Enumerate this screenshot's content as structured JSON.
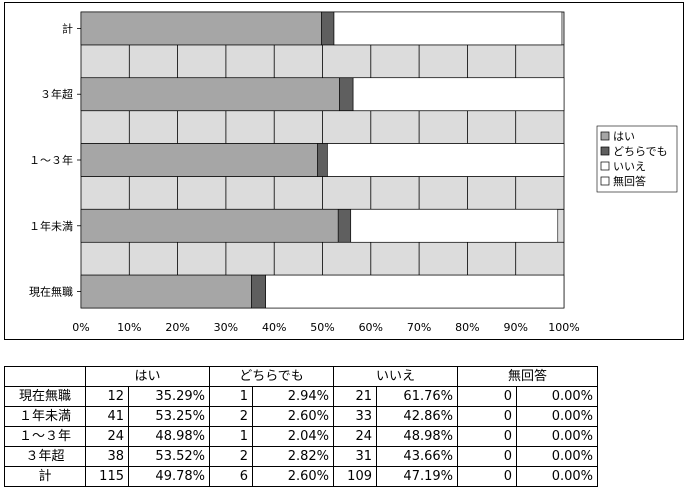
{
  "chart_data": {
    "type": "bar",
    "orientation": "horizontal",
    "stacked": "percent",
    "categories": [
      "計",
      "３年超",
      "１～３年",
      "１年未満",
      "現在無職"
    ],
    "series": [
      {
        "name": "はい",
        "values": [
          49.78,
          53.52,
          48.98,
          53.25,
          35.29
        ],
        "color": "#a6a6a6"
      },
      {
        "name": "どちらでも",
        "values": [
          2.6,
          2.82,
          2.04,
          2.6,
          2.94
        ],
        "color": "#5f5f5f"
      },
      {
        "name": "いいえ",
        "values": [
          47.19,
          43.66,
          48.98,
          42.86,
          61.76
        ],
        "color": "#ffffff"
      },
      {
        "name": "無回答",
        "values": [
          0.0,
          0.0,
          0.0,
          0.0,
          0.0
        ],
        "color": "#ffffff"
      }
    ],
    "x_ticks": [
      "0%",
      "10%",
      "20%",
      "30%",
      "40%",
      "50%",
      "60%",
      "70%",
      "80%",
      "90%",
      "100%"
    ],
    "xlim": [
      0,
      100
    ],
    "grid": true,
    "plot_background": "#dcdcdc",
    "legend_position": "right"
  },
  "table": {
    "headers": [
      "はい",
      "どちらでも",
      "いいえ",
      "無回答"
    ],
    "rows": [
      {
        "label": "現在無職",
        "cells": [
          "12",
          "35.29%",
          "1",
          "2.94%",
          "21",
          "61.76%",
          "0",
          "0.00%"
        ]
      },
      {
        "label": "１年未満",
        "cells": [
          "41",
          "53.25%",
          "2",
          "2.60%",
          "33",
          "42.86%",
          "0",
          "0.00%"
        ]
      },
      {
        "label": "１～３年",
        "cells": [
          "24",
          "48.98%",
          "1",
          "2.04%",
          "24",
          "48.98%",
          "0",
          "0.00%"
        ]
      },
      {
        "label": "３年超",
        "cells": [
          "38",
          "53.52%",
          "2",
          "2.82%",
          "31",
          "43.66%",
          "0",
          "0.00%"
        ]
      },
      {
        "label": "計",
        "cells": [
          "115",
          "49.78%",
          "6",
          "2.60%",
          "109",
          "47.19%",
          "0",
          "0.00%"
        ]
      }
    ]
  }
}
